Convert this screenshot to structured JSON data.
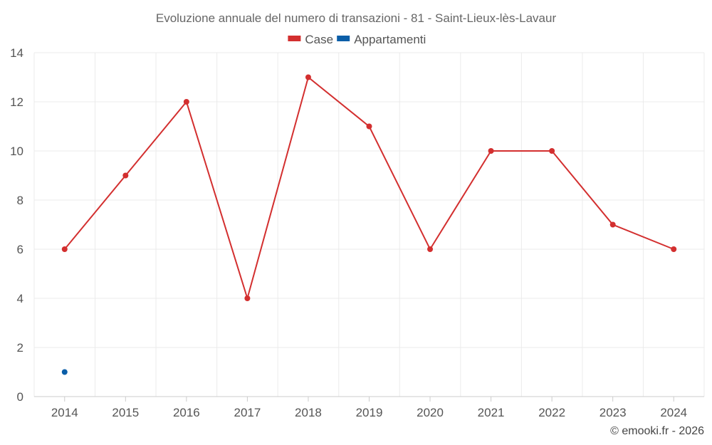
{
  "chart_data": {
    "type": "line",
    "title": "Evoluzione annuale del numero di transazioni - 81 - Saint-Lieux-lès-Lavaur",
    "x": [
      2014,
      2015,
      2016,
      2017,
      2018,
      2019,
      2020,
      2021,
      2022,
      2023,
      2024
    ],
    "series": [
      {
        "name": "Case",
        "color": "#d32f2f",
        "values": [
          6,
          9,
          12,
          4,
          13,
          11,
          6,
          10,
          10,
          7,
          6
        ]
      },
      {
        "name": "Appartamenti",
        "color": "#0a5ea8",
        "values": [
          1,
          null,
          null,
          null,
          null,
          null,
          null,
          null,
          null,
          null,
          null
        ]
      }
    ],
    "ylim": [
      0,
      14
    ],
    "yticks": [
      0,
      2,
      4,
      6,
      8,
      10,
      12,
      14
    ],
    "grid": true,
    "legend": "top-center"
  },
  "credit": "© emooki.fr - 2026"
}
